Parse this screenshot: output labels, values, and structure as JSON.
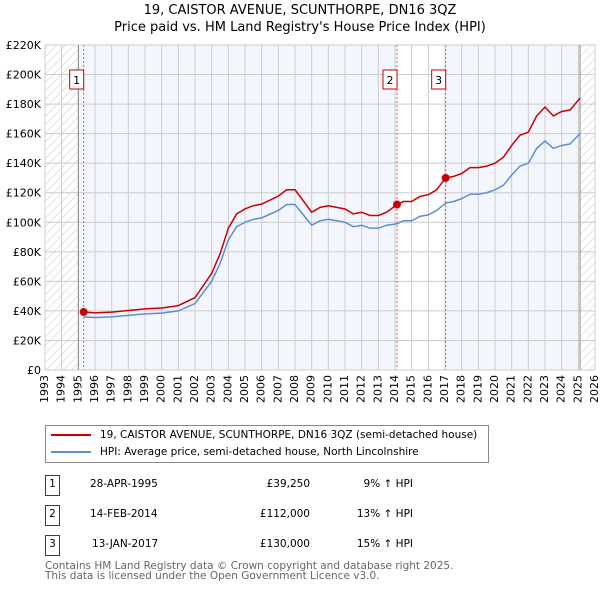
{
  "chart_data": {
    "type": "line",
    "title": "19, CAISTOR AVENUE, SCUNTHORPE, DN16 3QZ",
    "subtitle": "Price paid vs. HM Land Registry's House Price Index (HPI)",
    "xlim": [
      1993,
      2026
    ],
    "ylim": [
      0,
      220000
    ],
    "x_ticks": [
      1993,
      1994,
      1995,
      1996,
      1997,
      1998,
      1999,
      2000,
      2001,
      2002,
      2003,
      2004,
      2005,
      2006,
      2007,
      2008,
      2009,
      2010,
      2011,
      2012,
      2013,
      2014,
      2015,
      2016,
      2017,
      2018,
      2019,
      2020,
      2021,
      2022,
      2023,
      2024,
      2025,
      2026
    ],
    "y_ticks": [
      {
        "v": 0,
        "label": "£0"
      },
      {
        "v": 20000,
        "label": "£20K"
      },
      {
        "v": 40000,
        "label": "£40K"
      },
      {
        "v": 60000,
        "label": "£60K"
      },
      {
        "v": 80000,
        "label": "£80K"
      },
      {
        "v": 100000,
        "label": "£100K"
      },
      {
        "v": 120000,
        "label": "£120K"
      },
      {
        "v": 140000,
        "label": "£140K"
      },
      {
        "v": 160000,
        "label": "£160K"
      },
      {
        "v": 180000,
        "label": "£180K"
      },
      {
        "v": 200000,
        "label": "£200K"
      },
      {
        "v": 220000,
        "label": "£220K"
      }
    ],
    "grid": true,
    "hatched_before": 1995,
    "hatched_after": 2025.1,
    "x": [
      1995.32,
      1996,
      1997,
      1998,
      1999,
      2000,
      2001,
      2002,
      2003,
      2003.5,
      2004,
      2004.5,
      2005,
      2005.5,
      2006,
      2007,
      2007.5,
      2008,
      2008.5,
      2009,
      2009.5,
      2010,
      2010.5,
      2011,
      2011.5,
      2012,
      2012.5,
      2013,
      2013.5,
      2014.12,
      2014.5,
      2015,
      2015.5,
      2016,
      2016.5,
      2017.04,
      2017.5,
      2018,
      2018.5,
      2019,
      2019.5,
      2020,
      2020.5,
      2021,
      2021.5,
      2022,
      2022.5,
      2023,
      2023.5,
      2024,
      2024.5,
      2025.1
    ],
    "series": [
      {
        "name": "19, CAISTOR AVENUE, SCUNTHORPE, DN16 3QZ (semi-detached house)",
        "color": "#cc0000",
        "values": [
          39.25,
          38.7,
          39.2,
          40.3,
          41.4,
          42,
          43.6,
          49,
          65.4,
          78.5,
          95.9,
          105.7,
          109,
          111.2,
          112.3,
          117.7,
          122,
          122,
          114.5,
          106.8,
          110.1,
          111.2,
          110.1,
          109,
          105.7,
          106.8,
          104.6,
          104.6,
          106.8,
          112,
          114.1,
          114.1,
          117.5,
          118.7,
          122,
          130,
          131,
          133,
          137,
          137,
          138,
          140,
          144,
          152,
          159,
          161,
          172,
          178,
          172,
          175,
          176,
          184
        ]
      },
      {
        "name": "HPI: Average price, semi-detached house, North Lincolnshire",
        "color": "#5b8fd1",
        "values": [
          36,
          35.5,
          36,
          37,
          38,
          38.5,
          40,
          45,
          60,
          72,
          88,
          97,
          100,
          102,
          103,
          108,
          112,
          112,
          105,
          98,
          101,
          102,
          101,
          100,
          97,
          98,
          96,
          96,
          98,
          99,
          101,
          101,
          104,
          105,
          108,
          113,
          114,
          116,
          119,
          119,
          120,
          122,
          125,
          132,
          138,
          140,
          150,
          155,
          150,
          152,
          153,
          160
        ]
      }
    ],
    "value_unit": "thousands GBP",
    "sales": [
      {
        "n": "1",
        "x": 1995.32,
        "price": 39250,
        "date": "28-APR-1995",
        "price_label": "£39,250",
        "hpi_label": "9% ↑ HPI"
      },
      {
        "n": "2",
        "x": 2014.12,
        "price": 112000,
        "date": "14-FEB-2014",
        "price_label": "£112,000",
        "hpi_label": "13% ↑ HPI"
      },
      {
        "n": "3",
        "x": 2017.04,
        "price": 130000,
        "date": "13-JAN-2017",
        "price_label": "£130,000",
        "hpi_label": "15% ↑ HPI"
      }
    ]
  },
  "footer": {
    "line1": "Contains HM Land Registry data © Crown copyright and database right 2025.",
    "line2": "This data is licensed under the Open Government Licence v3.0."
  }
}
